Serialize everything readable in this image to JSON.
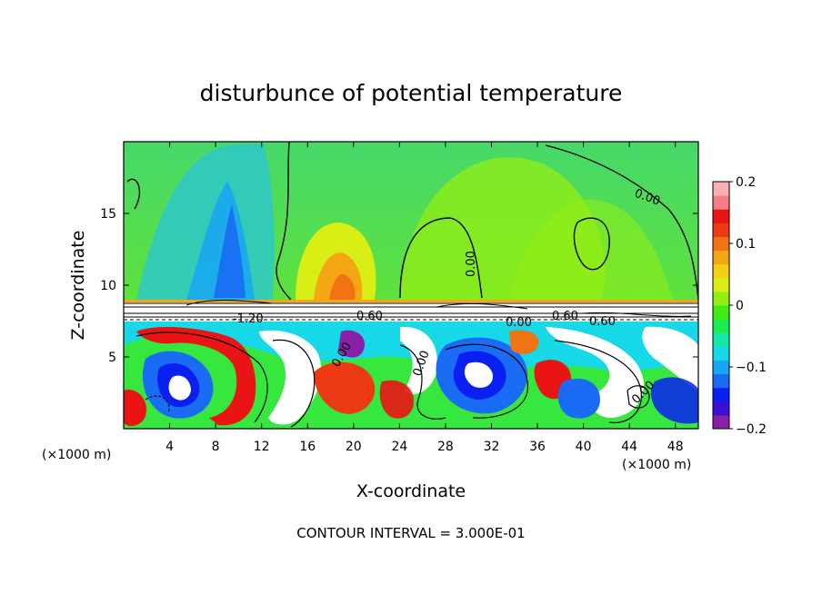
{
  "chart_data": {
    "type": "heatmap",
    "title": "disturbunce of potential temperature",
    "xlabel": "X-coordinate",
    "ylabel": "Z-coordinate",
    "x_unit": "(×1000 m)",
    "y_unit": "(×1000 m)",
    "xlim": [
      0,
      50
    ],
    "ylim": [
      0,
      20
    ],
    "x_ticks": [
      4,
      8,
      12,
      16,
      20,
      24,
      28,
      32,
      36,
      40,
      44,
      48
    ],
    "y_ticks": [
      5,
      10,
      15
    ],
    "colorbar": {
      "min": -0.2,
      "max": 0.2,
      "ticks": [
        {
          "value": 0.2,
          "label": "0.2"
        },
        {
          "value": 0.1,
          "label": "0.1"
        },
        {
          "value": 0.0,
          "label": "0"
        },
        {
          "value": -0.1,
          "label": "−0.1"
        },
        {
          "value": -0.2,
          "label": "−0.2"
        }
      ],
      "colors": [
        "#8a1faa",
        "#3b0fd6",
        "#0a20f0",
        "#1a6cf5",
        "#18a6f5",
        "#16d8e6",
        "#14e8a8",
        "#1cec50",
        "#3fec14",
        "#93ee14",
        "#d8ee14",
        "#f4d014",
        "#f5a614",
        "#f07414",
        "#ee3a14",
        "#ea1414",
        "#f47c86",
        "#f8b0b0"
      ]
    },
    "contour_interval": "CONTOUR INTERVAL = 3.000E-01",
    "contour_labels": [
      "0.00",
      "0.00",
      "-1.20",
      "0.60",
      "0.60",
      "0.00",
      "0.60",
      "0.00",
      "0.00",
      "0.00"
    ]
  }
}
